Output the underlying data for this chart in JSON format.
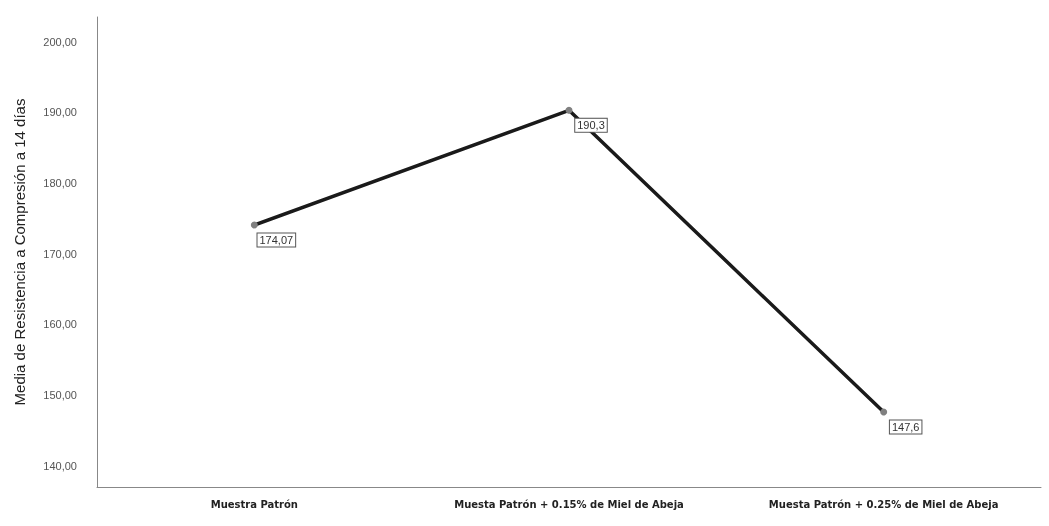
{
  "chart_data": {
    "type": "line",
    "ylabel": "Media de Resistencia a Compresión a 14 días",
    "categories": [
      "Muestra Patrón",
      "Muesta Patrón + 0.15% de Miel de Abeja",
      "Muesta Patrón + 0.25% de Miel de Abeja"
    ],
    "series": [
      {
        "color": "#1a1a1a",
        "values": [
          174.07,
          190.3,
          147.6
        ],
        "value_labels": [
          "174,07",
          "190,3",
          "147,6"
        ]
      }
    ],
    "ylim": [
      137,
      203.5
    ],
    "yticks": [
      {
        "value": 140,
        "label": "140,00"
      },
      {
        "value": 150,
        "label": "150,00"
      },
      {
        "value": 160,
        "label": "160,00"
      },
      {
        "value": 170,
        "label": "170,00"
      },
      {
        "value": 180,
        "label": "180,00"
      },
      {
        "value": 190,
        "label": "190,00"
      },
      {
        "value": 200,
        "label": "200,00"
      }
    ],
    "grid": false,
    "marker": "circle",
    "line_style": "solid"
  }
}
